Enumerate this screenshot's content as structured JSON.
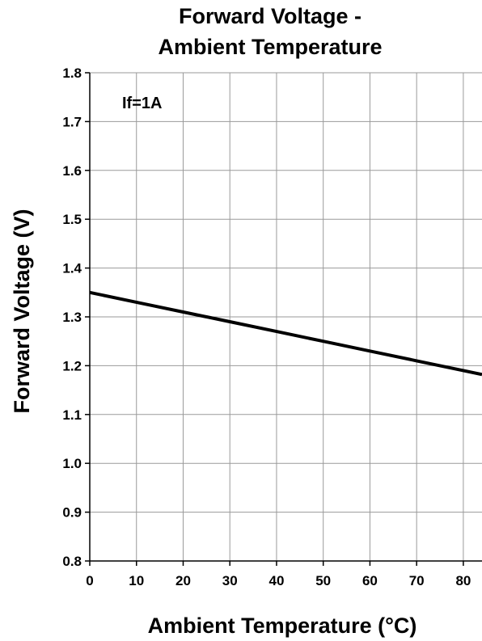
{
  "chart_data": {
    "type": "line",
    "title_lines": [
      "Forward Voltage -",
      "Ambient Temperature"
    ],
    "xlabel": "Ambient Temperature (°C)",
    "ylabel": "Forward Voltage (V)",
    "annotation": "If=1A",
    "xlim": [
      0,
      84
    ],
    "ylim": [
      0.8,
      1.8
    ],
    "x_ticks": [
      0,
      10,
      20,
      30,
      40,
      50,
      60,
      70,
      80
    ],
    "x_tick_labels": [
      "0",
      "10",
      "20",
      "30",
      "40",
      "50",
      "60",
      "70",
      "80"
    ],
    "y_ticks": [
      0.8,
      0.9,
      1.0,
      1.1,
      1.2,
      1.3,
      1.4,
      1.5,
      1.6,
      1.7,
      1.8
    ],
    "y_tick_labels": [
      "0.8",
      "0.9",
      "1.0",
      "1.1",
      "1.2",
      "1.3",
      "1.4",
      "1.5",
      "1.6",
      "1.7",
      "1.8"
    ],
    "grid": true,
    "series": [
      {
        "x": [
          0,
          10,
          20,
          30,
          40,
          50,
          60,
          70,
          80,
          84
        ],
        "y": [
          1.35,
          1.33,
          1.31,
          1.29,
          1.27,
          1.25,
          1.23,
          1.21,
          1.19,
          1.182
        ],
        "color": "#000000"
      }
    ]
  }
}
